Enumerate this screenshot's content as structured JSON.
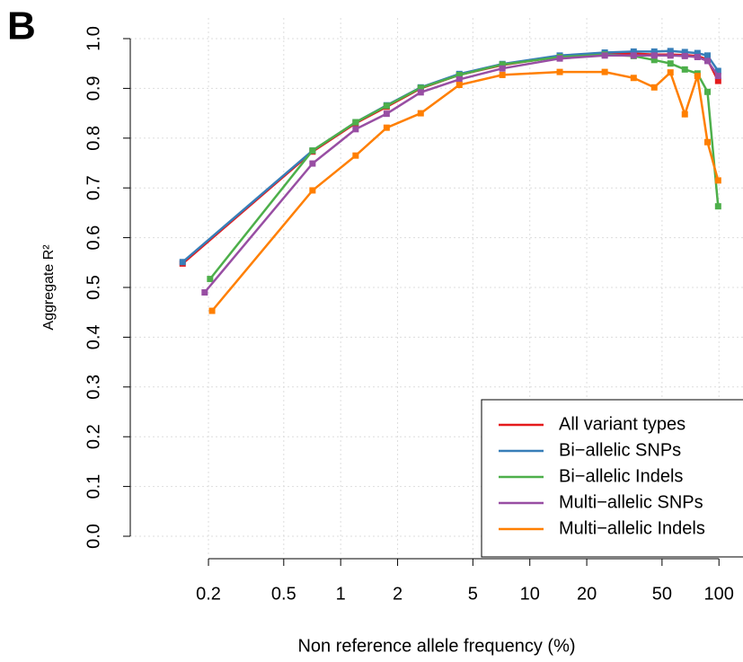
{
  "panel_label": "B",
  "chart_data": {
    "type": "line",
    "x_label": "Non reference allele frequency (%)",
    "y_label": "Aggregate R²",
    "xscale": "log",
    "xlim": [
      0.0772,
      134
    ],
    "ylim": [
      -0.0415,
      1.0415
    ],
    "xticks": [
      0.2,
      0.5,
      1,
      2,
      5,
      10,
      20,
      50,
      100
    ],
    "yticks": [
      {
        "value": 0,
        "label": "0.0"
      },
      0.1,
      0.2,
      0.3,
      0.4,
      0.5,
      0.6,
      0.7,
      0.8,
      0.9,
      {
        "value": 1,
        "label": "1.0"
      }
    ],
    "grid": true,
    "legend": "bottom-right",
    "series": [
      {
        "name": "All variant types",
        "color": "#e41a1c",
        "x": [
          0.146,
          0.71,
          1.2,
          1.75,
          2.65,
          4.24,
          7.16,
          14.4,
          24.9,
          35.4,
          45.5,
          55.4,
          66,
          77,
          87,
          99
        ],
        "values": [
          0.548,
          0.773,
          0.83,
          0.863,
          0.9,
          0.927,
          0.947,
          0.964,
          0.97,
          0.97,
          0.968,
          0.968,
          0.967,
          0.965,
          0.958,
          0.915
        ]
      },
      {
        "name": "Bi−allelic SNPs",
        "color": "#377eb8",
        "x": [
          0.146,
          0.71,
          1.2,
          1.75,
          2.65,
          4.24,
          7.16,
          14.4,
          24.9,
          35.4,
          45.5,
          55.4,
          66,
          77,
          87,
          99
        ],
        "values": [
          0.551,
          0.775,
          0.832,
          0.866,
          0.902,
          0.929,
          0.949,
          0.966,
          0.972,
          0.974,
          0.974,
          0.975,
          0.973,
          0.971,
          0.966,
          0.935
        ]
      },
      {
        "name": "Bi−allelic Indels",
        "color": "#4daf4a",
        "x": [
          0.204,
          0.71,
          1.2,
          1.75,
          2.65,
          4.24,
          7.16,
          14.4,
          24.9,
          35.4,
          45.5,
          55.4,
          66,
          77,
          87,
          99
        ],
        "values": [
          0.517,
          0.775,
          0.832,
          0.865,
          0.901,
          0.927,
          0.948,
          0.963,
          0.968,
          0.965,
          0.957,
          0.95,
          0.938,
          0.93,
          0.893,
          0.663
        ]
      },
      {
        "name": "Multi−allelic SNPs",
        "color": "#984ea3",
        "x": [
          0.191,
          0.71,
          1.2,
          1.75,
          2.65,
          4.24,
          7.16,
          14.4,
          24.9,
          35.4,
          45.5,
          55.4,
          66,
          77,
          87,
          99
        ],
        "values": [
          0.49,
          0.749,
          0.818,
          0.849,
          0.892,
          0.918,
          0.94,
          0.96,
          0.966,
          0.966,
          0.966,
          0.966,
          0.965,
          0.963,
          0.955,
          0.925
        ]
      },
      {
        "name": "Multi−allelic Indels",
        "color": "#ff7f00",
        "x": [
          0.209,
          0.71,
          1.2,
          1.75,
          2.65,
          4.24,
          7.16,
          14.4,
          24.9,
          35.4,
          45.5,
          55.4,
          66,
          77,
          87,
          99
        ],
        "values": [
          0.453,
          0.695,
          0.765,
          0.821,
          0.85,
          0.907,
          0.927,
          0.933,
          0.933,
          0.921,
          0.902,
          0.932,
          0.848,
          0.925,
          0.792,
          0.715
        ]
      }
    ]
  }
}
